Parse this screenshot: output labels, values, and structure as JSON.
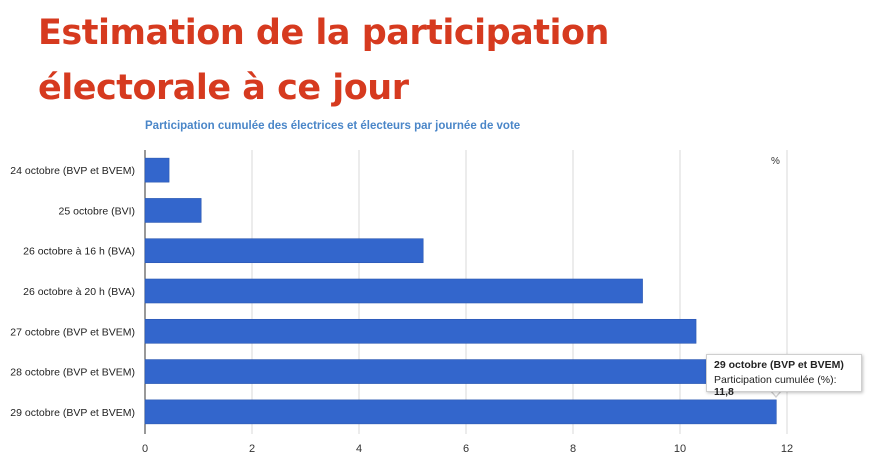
{
  "heading": {
    "line1": "Estimation de la participation",
    "line2": "électorale à ce jour"
  },
  "chart_data": {
    "type": "bar",
    "orientation": "horizontal",
    "title": "Participation cumulée des électrices et électeurs par journée de vote",
    "unit_label": "%",
    "categories": [
      "24 octobre (BVP et BVEM)",
      "25 octobre (BVI)",
      "26 octobre à 16 h (BVA)",
      "26 octobre à 20 h (BVA)",
      "27 octobre (BVP et BVEM)",
      "28 octobre (BVP et BVEM)",
      "29 octobre (BVP et BVEM)"
    ],
    "values": [
      0.45,
      1.05,
      5.2,
      9.3,
      10.3,
      11.2,
      11.8
    ],
    "xlim": [
      0,
      12
    ],
    "xticks": [
      "0",
      "2",
      "4",
      "6",
      "8",
      "10",
      "12"
    ],
    "grid": true,
    "bar_color": "#3366cc"
  },
  "tooltip": {
    "title": "29 octobre (BVP et BVEM)",
    "label": "Participation cumulée (%): ",
    "value": "11,8"
  }
}
